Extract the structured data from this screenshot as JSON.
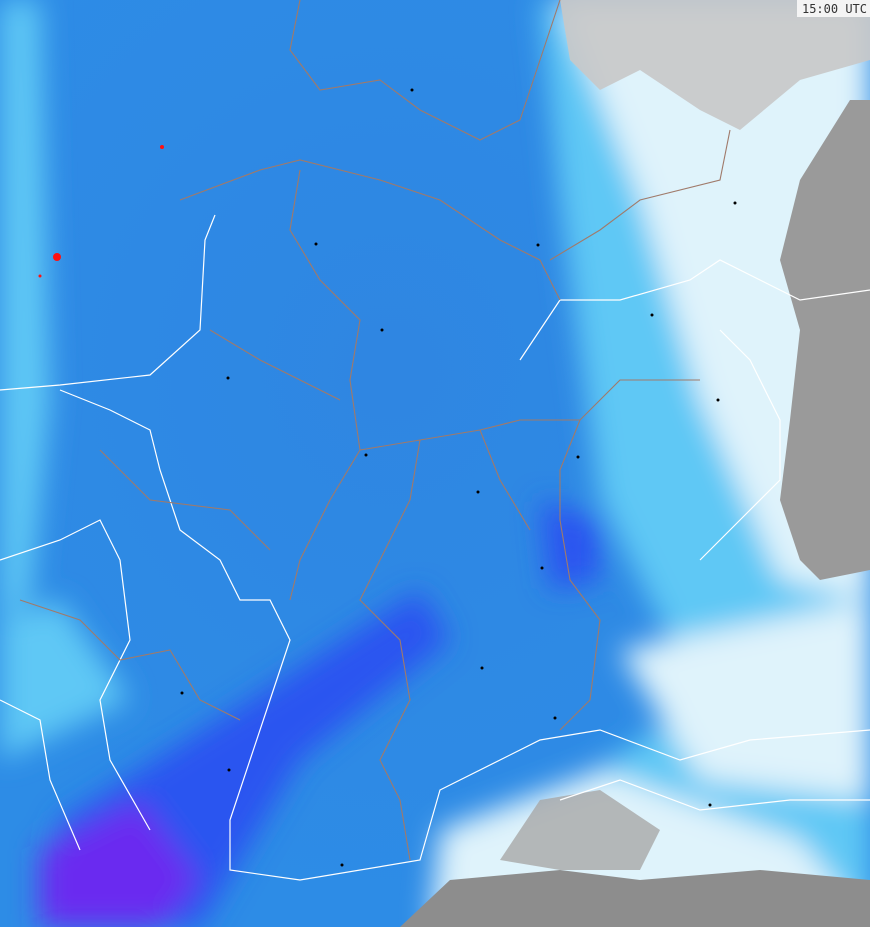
{
  "timestamp": "15:00 UTC",
  "colors": {
    "land_no_precip": "#9a9a9a",
    "sea": "#c8c8c8",
    "very_light": "#dff3fb",
    "light": "#5ec8f5",
    "moderate": "#2d8ce6",
    "heavy": "#2a55f0",
    "very_heavy": "#6a2af0",
    "extreme": "#ff1010",
    "border_country": "#ffffff",
    "border_state": "#a07a6a"
  }
}
